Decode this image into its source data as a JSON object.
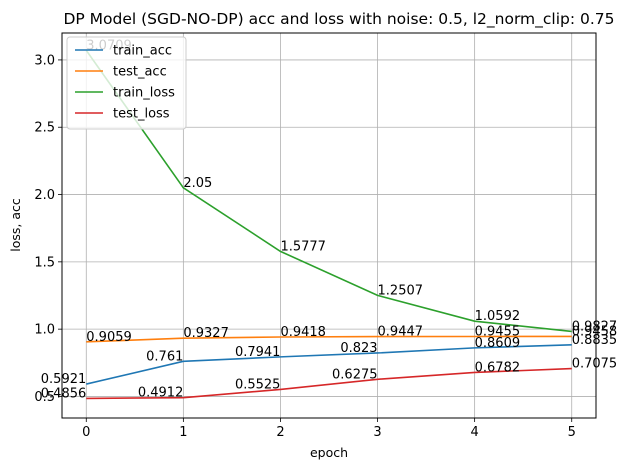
{
  "chart_data": {
    "type": "line",
    "title": "DP Model (SGD-NO-DP) acc and loss with noise: 0.5, l2_norm_clip: 0.75",
    "xlabel": "epoch",
    "ylabel": "loss, acc",
    "x": [
      0,
      1,
      2,
      3,
      4,
      5
    ],
    "xlim": [
      -0.25,
      5.25
    ],
    "ylim": [
      0.34,
      3.2
    ],
    "xticks": [
      "0",
      "1",
      "2",
      "3",
      "4",
      "5"
    ],
    "yticks": [
      "0.5",
      "1.0",
      "1.5",
      "2.0",
      "2.5",
      "3.0"
    ],
    "grid": true,
    "legend_position": "top-left",
    "series": [
      {
        "name": "train_acc",
        "color": "#1f77b4",
        "values": [
          0.5921,
          0.761,
          0.7941,
          0.823,
          0.8609,
          0.8835
        ],
        "labels": [
          "0.5921",
          "0.761",
          "0.7941",
          "0.823",
          "0.8609",
          "0.8835"
        ]
      },
      {
        "name": "test_acc",
        "color": "#ff7f0e",
        "values": [
          0.9059,
          0.9327,
          0.9418,
          0.9447,
          0.9455,
          0.9458
        ],
        "labels": [
          "0.9059",
          "0.9327",
          "0.9418",
          "0.9447",
          "0.9455",
          "0.9458"
        ]
      },
      {
        "name": "train_loss",
        "color": "#2ca02c",
        "values": [
          3.0709,
          2.05,
          1.5777,
          1.2507,
          1.0592,
          0.9827
        ],
        "labels": [
          "3.0709",
          "2.05",
          "1.5777",
          "1.2507",
          "1.0592",
          "0.9827"
        ]
      },
      {
        "name": "test_loss",
        "color": "#d62728",
        "values": [
          0.4856,
          0.4912,
          0.5525,
          0.6275,
          0.6782,
          0.7075
        ],
        "labels": [
          "0.4856",
          "0.4912",
          "0.5525",
          "0.6275",
          "0.6782",
          "0.7075"
        ]
      }
    ]
  }
}
